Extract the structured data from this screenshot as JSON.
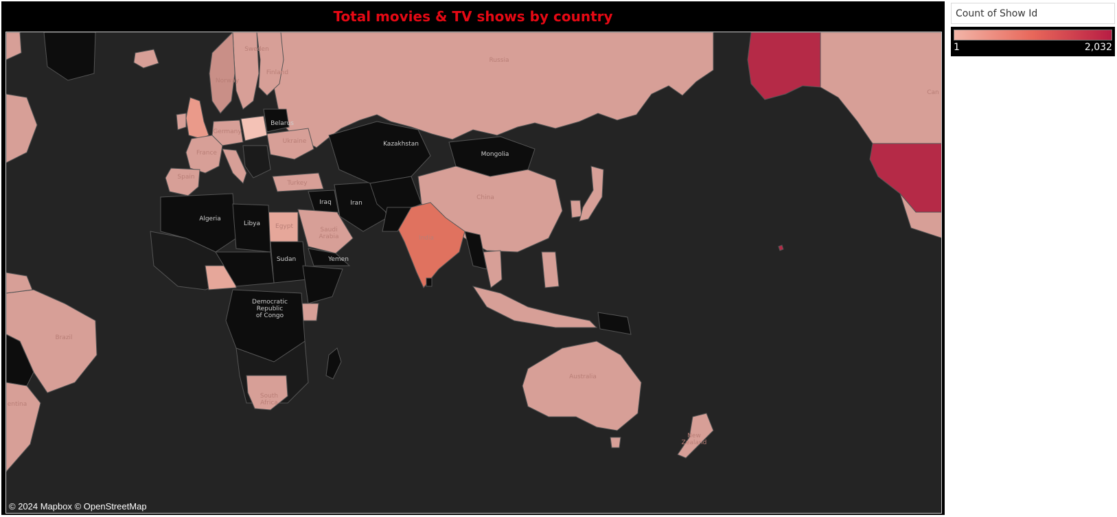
{
  "title": "Total movies & TV shows by country",
  "attribution": "© 2024 Mapbox © OpenStreetMap",
  "legend": {
    "title": "Count of Show Id",
    "min_label": "1",
    "max_label": "2,032",
    "color_low": "#f2b5a8",
    "color_mid": "#e8675a",
    "color_high": "#b81d44"
  },
  "colors": {
    "title": "#e50914",
    "ocean": "#242424",
    "no_data": "#0d0d0d",
    "low": "#d79f97",
    "india": "#e0725f",
    "us": "#b52a47"
  },
  "places": {
    "russia": "Russia",
    "kazakhstan": "Kazakhstan",
    "mongolia": "Mongolia",
    "china": "China",
    "india": "India",
    "iran": "Iran",
    "iraq": "Iraq",
    "saudi_arabia": "Saudi\nArabia",
    "yemen": "Yemen",
    "egypt": "Egypt",
    "libya": "Libya",
    "algeria": "Algeria",
    "sudan": "Sudan",
    "drc_1": "Democratic",
    "drc_2": "Republic",
    "drc_3": "of Congo",
    "south_africa_1": "South",
    "south_africa_2": "Africa",
    "brazil": "Brazil",
    "argentina": "entina",
    "australia": "Australia",
    "new_zealand_1": "New",
    "new_zealand_2": "Zealand",
    "france": "France",
    "spain": "Spain",
    "ukraine": "Ukraine",
    "belarus": "Belarus",
    "finland": "Finland",
    "turkey": "Turkey",
    "sweden": "Sweden",
    "norway": "Norway",
    "germany": "Germany",
    "canada": "Can"
  }
}
